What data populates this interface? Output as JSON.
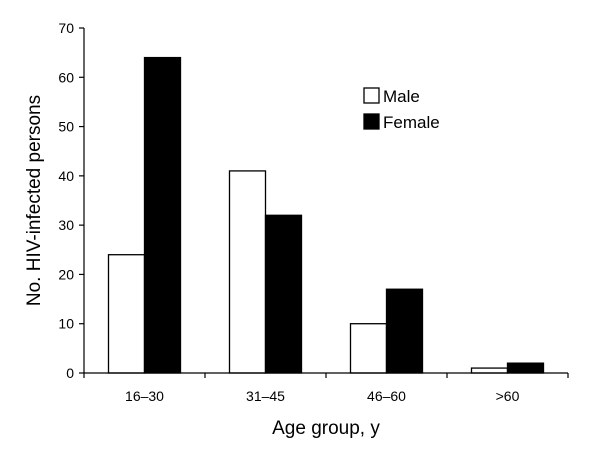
{
  "chart_data": {
    "type": "bar",
    "title": "",
    "xlabel": "Age group, y",
    "ylabel": "No. HIV-infected persons",
    "categories": [
      "16–30",
      "31–45",
      "46–60",
      ">60"
    ],
    "series": [
      {
        "name": "Male",
        "values": [
          24,
          41,
          10,
          1
        ],
        "color": "#ffffff"
      },
      {
        "name": "Female",
        "values": [
          64,
          32,
          17,
          2
        ],
        "color": "#000000"
      }
    ],
    "ylim": [
      0,
      70
    ],
    "yticks": [
      0,
      10,
      20,
      30,
      40,
      50,
      60,
      70
    ],
    "grid": false,
    "legend": "top-right"
  }
}
